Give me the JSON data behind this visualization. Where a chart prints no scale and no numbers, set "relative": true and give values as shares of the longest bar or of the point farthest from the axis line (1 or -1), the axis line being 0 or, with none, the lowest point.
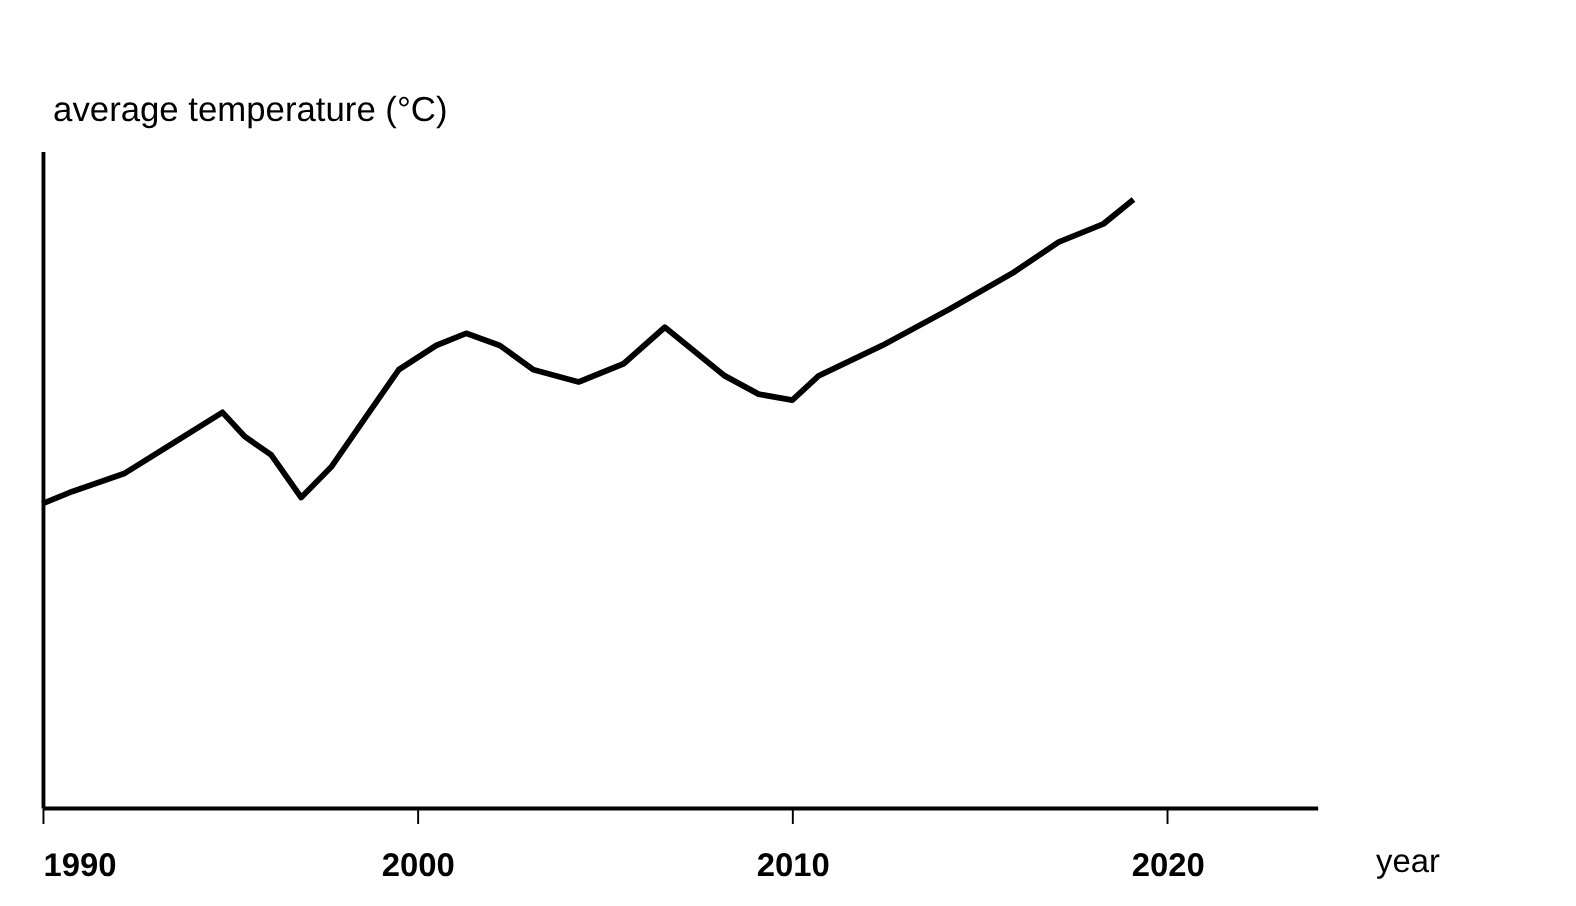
{
  "chart_data": {
    "type": "line",
    "xlabel": "year",
    "ylabel": "average temperature (°C)",
    "relative": true,
    "xlim": [
      1990,
      2024
    ],
    "xticks": [
      1990,
      2000,
      2010,
      2020
    ],
    "grid": false,
    "legend": false,
    "marker": "none",
    "line_style": "solid",
    "x": [
      1990,
      1990.8,
      1992.2,
      1993.5,
      1994.8,
      1995.4,
      1996.1,
      1996.9,
      1997.7,
      1998.6,
      1999.5,
      2000.5,
      2001.3,
      2002.2,
      2003.1,
      2004.3,
      2005.5,
      2006.6,
      2007.2,
      2008.2,
      2009.1,
      2010,
      2010.7,
      2012.4,
      2014.2,
      2015.9,
      2017.1,
      2018.3,
      2019.1
    ],
    "series": [
      {
        "color": "#000000",
        "values": [
          0.5,
          0.52,
          0.55,
          0.6,
          0.65,
          0.61,
          0.58,
          0.51,
          0.56,
          0.64,
          0.72,
          0.76,
          0.78,
          0.76,
          0.72,
          0.7,
          0.73,
          0.79,
          0.76,
          0.71,
          0.68,
          0.67,
          0.71,
          0.76,
          0.82,
          0.88,
          0.93,
          0.96,
          1
        ]
      }
    ]
  }
}
